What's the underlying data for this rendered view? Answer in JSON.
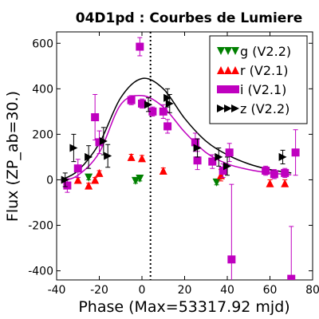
{
  "chart_data": {
    "type": "scatter",
    "title": "04D1pd : Courbes de Lumiere",
    "xlabel": "Phase (Max=53317.92 mjd)",
    "ylabel": "Flux (ZP_ab=30.)",
    "xlim": [
      -40,
      80
    ],
    "ylim": [
      -440,
      650
    ],
    "xticks": [
      -40,
      -20,
      0,
      20,
      40,
      60,
      80
    ],
    "yticks": [
      -400,
      -200,
      0,
      200,
      400,
      600
    ],
    "vline_x": 4,
    "legend_position": "top-right",
    "series": [
      {
        "name": "g (V2.2)",
        "color": "#008000",
        "marker": "triangle-down",
        "points": [
          {
            "x": -25,
            "y": 10,
            "err": 10
          },
          {
            "x": -3,
            "y": -5,
            "err": 10
          },
          {
            "x": -1,
            "y": 5,
            "err": 10
          },
          {
            "x": 35,
            "y": -12,
            "err": 10
          }
        ]
      },
      {
        "name": "r (V2.1)",
        "color": "#ff0000",
        "marker": "triangle-up",
        "points": [
          {
            "x": -30,
            "y": 0,
            "err": 10
          },
          {
            "x": -25,
            "y": -25,
            "err": 10
          },
          {
            "x": -22,
            "y": 0,
            "err": 10
          },
          {
            "x": -20,
            "y": 30,
            "err": 10
          },
          {
            "x": -5,
            "y": 100,
            "err": 12
          },
          {
            "x": 0,
            "y": 95,
            "err": 12
          },
          {
            "x": 10,
            "y": 40,
            "err": 12
          },
          {
            "x": 37,
            "y": 20,
            "err": 25
          },
          {
            "x": 60,
            "y": -15,
            "err": 15
          },
          {
            "x": 67,
            "y": -15,
            "err": 15
          }
        ]
      },
      {
        "name": "i (V2.1)",
        "color": "#bf00bf",
        "marker": "square",
        "points": [
          {
            "x": -35,
            "y": -25,
            "err": 30
          },
          {
            "x": -30,
            "y": 50,
            "err": 40
          },
          {
            "x": -22,
            "y": 275,
            "err": 100
          },
          {
            "x": -20,
            "y": 165,
            "err": 50
          },
          {
            "x": -5,
            "y": 350,
            "err": 20
          },
          {
            "x": -1,
            "y": 585,
            "err": 40
          },
          {
            "x": 0,
            "y": 335,
            "err": 20
          },
          {
            "x": 5,
            "y": 300,
            "err": 20
          },
          {
            "x": 10,
            "y": 300,
            "err": 30
          },
          {
            "x": 12,
            "y": 235,
            "err": 30
          },
          {
            "x": 25,
            "y": 165,
            "err": 40
          },
          {
            "x": 26,
            "y": 85,
            "err": 40
          },
          {
            "x": 33,
            "y": 80,
            "err": 30
          },
          {
            "x": 38,
            "y": 40,
            "err": 30
          },
          {
            "x": 41,
            "y": 120,
            "err": 40
          },
          {
            "x": 42,
            "y": -350,
            "err": 330
          },
          {
            "x": 58,
            "y": 40,
            "err": 20
          },
          {
            "x": 62,
            "y": 25,
            "err": 20
          },
          {
            "x": 67,
            "y": 30,
            "err": 20
          },
          {
            "x": 70,
            "y": -435,
            "err": 230
          },
          {
            "x": 72,
            "y": 120,
            "err": 100
          }
        ]
      },
      {
        "name": "z (V2.2)",
        "color": "#000000",
        "marker": "triangle-right",
        "points": [
          {
            "x": -36,
            "y": 0,
            "err": 30
          },
          {
            "x": -32,
            "y": 140,
            "err": 60
          },
          {
            "x": -25,
            "y": 100,
            "err": 50
          },
          {
            "x": -18,
            "y": 170,
            "err": 60
          },
          {
            "x": -16,
            "y": 105,
            "err": 50
          },
          {
            "x": 3,
            "y": 330,
            "err": 30
          },
          {
            "x": 12,
            "y": 360,
            "err": 40
          },
          {
            "x": 13,
            "y": 335,
            "err": 40
          },
          {
            "x": 26,
            "y": 140,
            "err": 40
          },
          {
            "x": 36,
            "y": 100,
            "err": 40
          },
          {
            "x": 40,
            "y": 60,
            "err": 40
          },
          {
            "x": 66,
            "y": 100,
            "err": 30
          }
        ]
      }
    ],
    "curves": [
      {
        "color": "#000000",
        "points": [
          [
            -38,
            0
          ],
          [
            -30,
            40
          ],
          [
            -20,
            160
          ],
          [
            -10,
            360
          ],
          [
            0,
            445
          ],
          [
            10,
            400
          ],
          [
            20,
            270
          ],
          [
            30,
            170
          ],
          [
            40,
            110
          ],
          [
            50,
            70
          ],
          [
            60,
            45
          ],
          [
            70,
            30
          ]
        ]
      },
      {
        "color": "#bf00bf",
        "points": [
          [
            -38,
            -5
          ],
          [
            -30,
            20
          ],
          [
            -20,
            120
          ],
          [
            -10,
            330
          ],
          [
            0,
            370
          ],
          [
            10,
            320
          ],
          [
            20,
            210
          ],
          [
            30,
            120
          ],
          [
            40,
            70
          ],
          [
            50,
            45
          ],
          [
            60,
            30
          ],
          [
            70,
            22
          ]
        ]
      }
    ]
  }
}
